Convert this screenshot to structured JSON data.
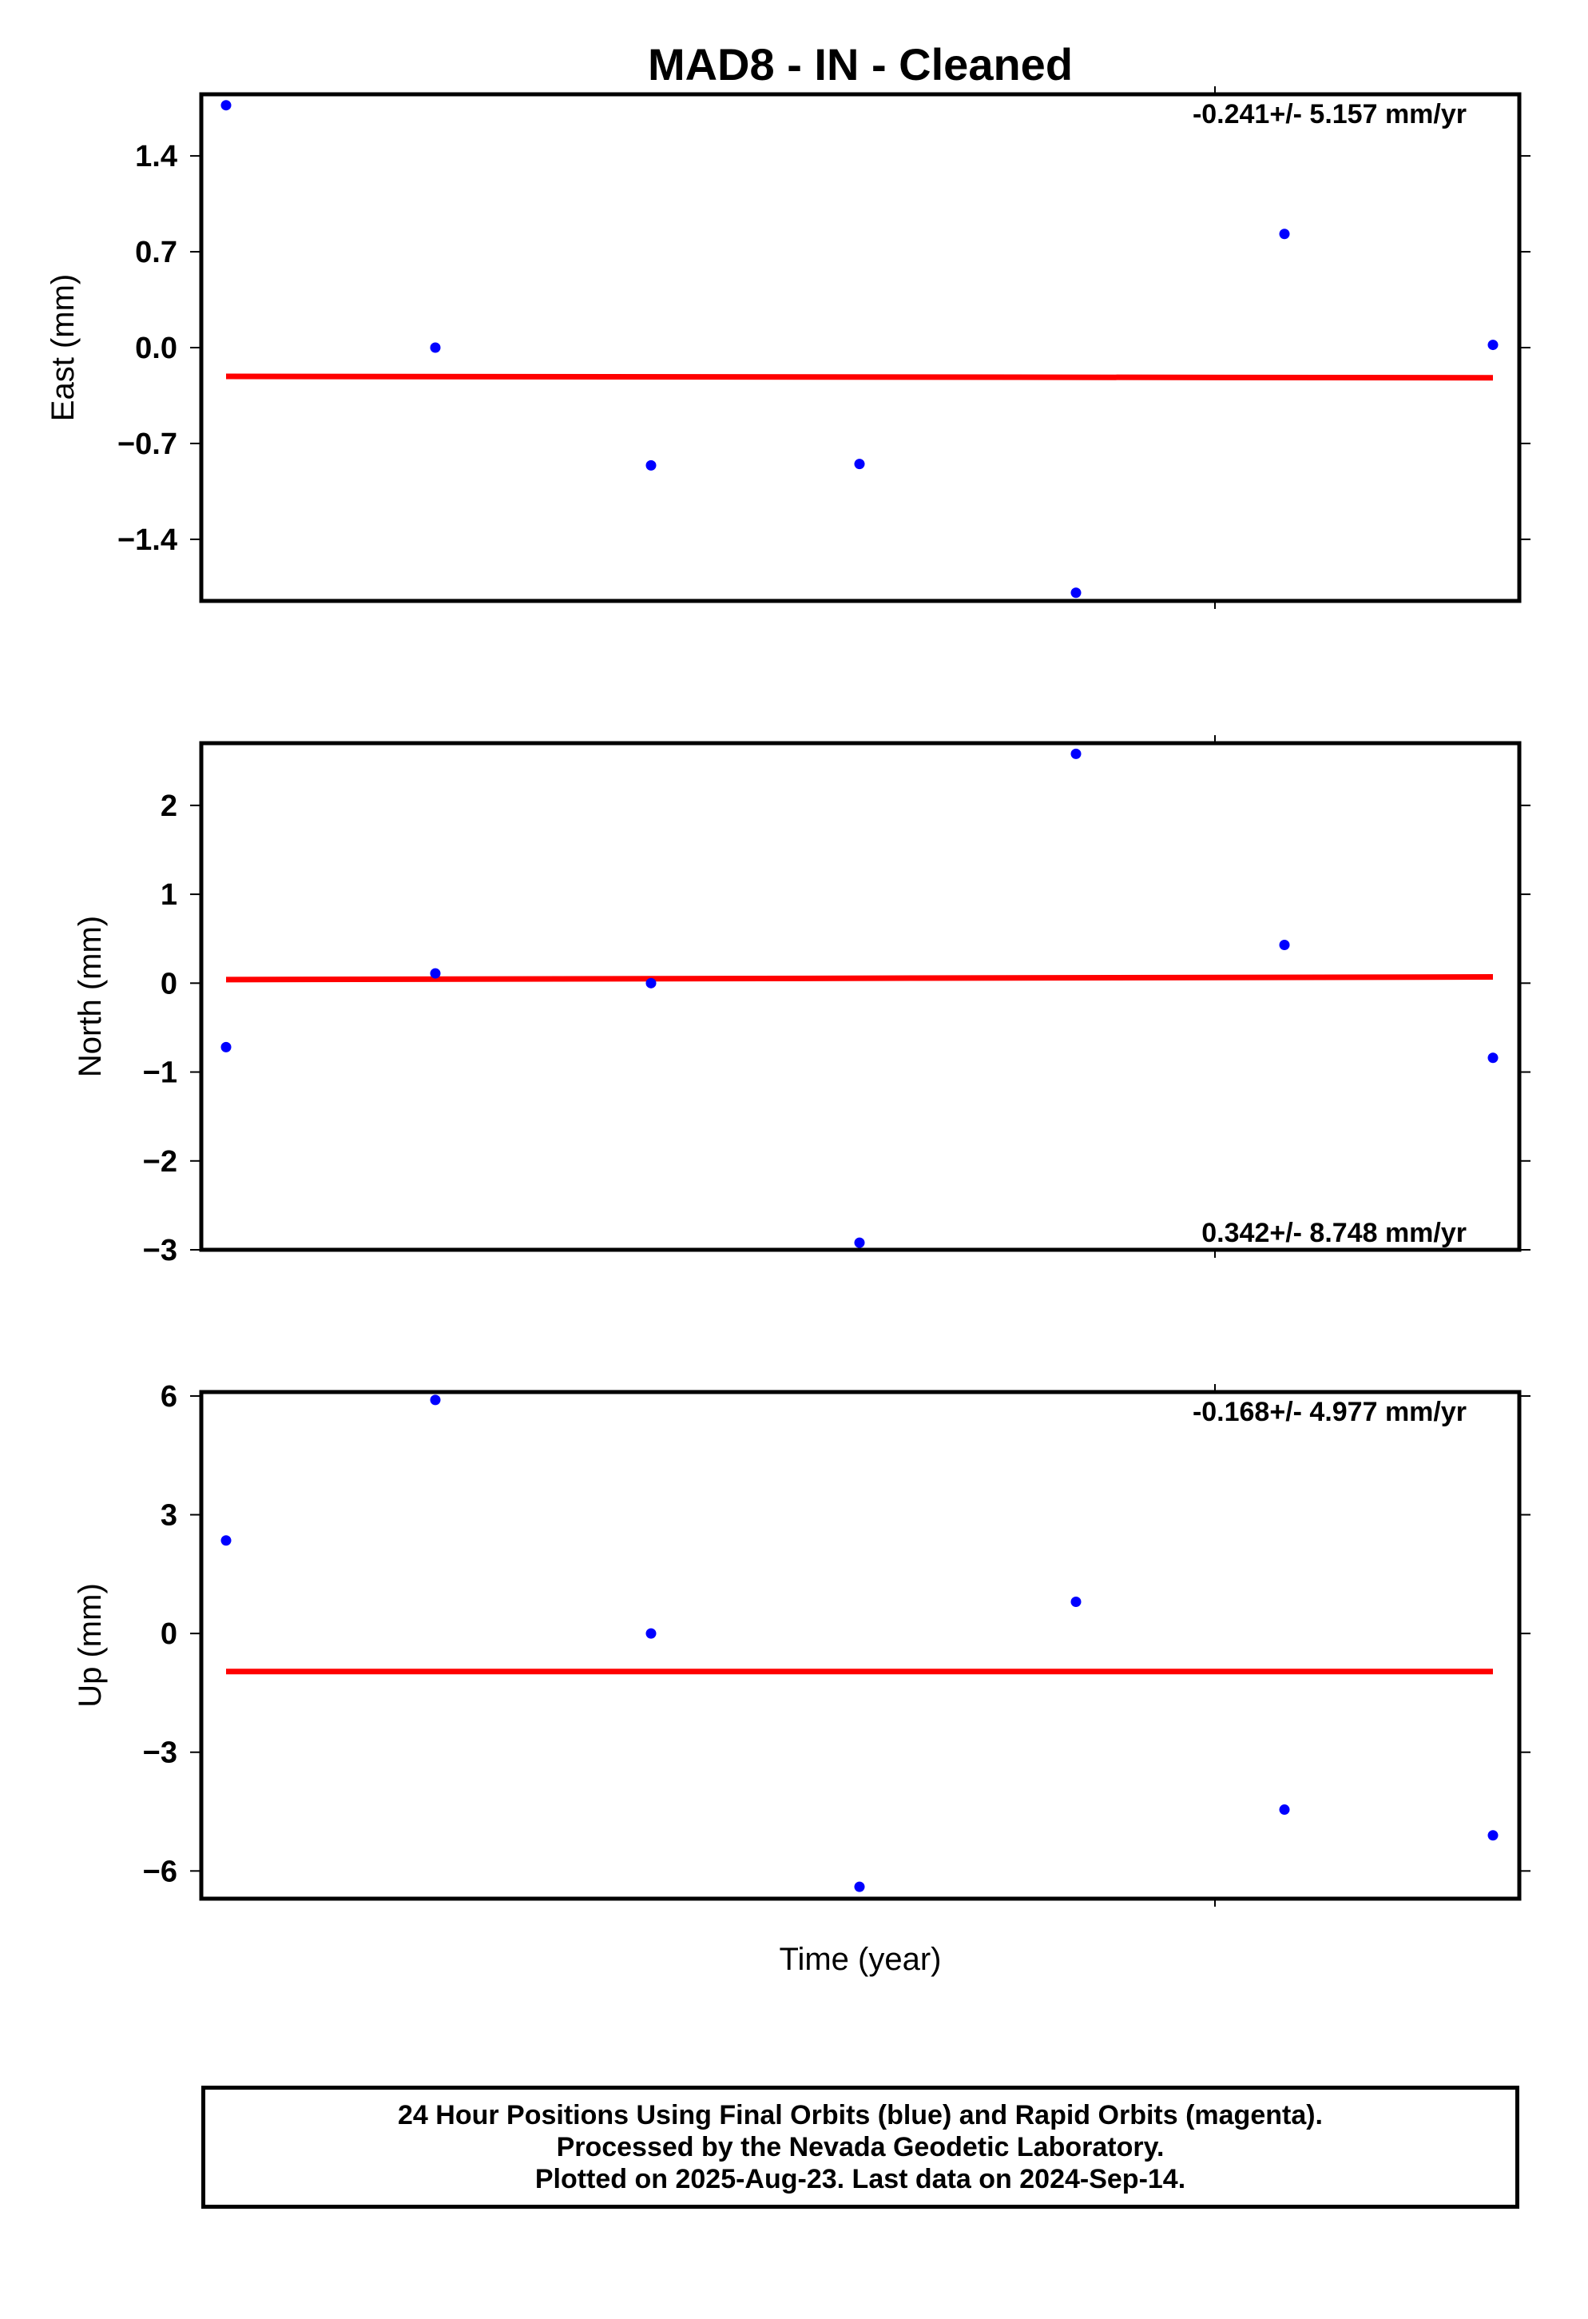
{
  "chart_data": {
    "type": "scatter",
    "title": "MAD8  - IN - Cleaned",
    "xlabel": "Time (year)",
    "colors": {
      "points": "#0000ff",
      "fit": "#ff0000"
    },
    "panels": [
      {
        "name": "east",
        "ylabel": "East (mm)",
        "ylim": [
          -1.85,
          1.85
        ],
        "yticks": [
          1.4,
          0.7,
          0.0,
          -0.7,
          -1.4
        ],
        "ytick_labels": [
          "1.4",
          "0.7",
          "0.0",
          "−0.7",
          "−1.4"
        ],
        "rate_text": "-0.241+/- 5.157 mm/yr",
        "rate_position": "top-right",
        "points": [
          1.77,
          0.0,
          -0.86,
          -0.85,
          -1.79,
          0.83,
          0.02
        ],
        "fit": [
          -0.21,
          -0.22
        ]
      },
      {
        "name": "north",
        "ylabel": "North (mm)",
        "ylim": [
          -3.0,
          2.7
        ],
        "yticks": [
          2,
          1,
          0,
          -1,
          -2,
          -3
        ],
        "ytick_labels": [
          "2",
          "1",
          "0",
          "−1",
          "−2",
          "−3"
        ],
        "rate_text": "0.342+/- 8.748 mm/yr",
        "rate_position": "bottom-right",
        "points": [
          -0.72,
          0.11,
          0.0,
          -2.92,
          2.58,
          0.43,
          -0.84
        ],
        "fit": [
          0.04,
          0.07
        ]
      },
      {
        "name": "up",
        "ylabel": "Up (mm)",
        "ylim": [
          -6.7,
          6.1
        ],
        "yticks": [
          6,
          3,
          0,
          -3,
          -6
        ],
        "ytick_labels": [
          "6",
          "3",
          "0",
          "−3",
          "−6"
        ],
        "rate_text": "-0.168+/- 4.977 mm/yr",
        "rate_position": "top-right",
        "points": [
          2.35,
          5.9,
          0.0,
          -6.4,
          0.8,
          -4.45,
          -5.1
        ],
        "fit": [
          -0.96,
          -0.96
        ]
      }
    ]
  },
  "footer": {
    "line1": "24 Hour Positions Using Final Orbits (blue) and Rapid Orbits (magenta).",
    "line2": "Processed by the Nevada Geodetic Laboratory.",
    "line3": "Plotted on 2025-Aug-23. Last data on 2024-Sep-14."
  }
}
